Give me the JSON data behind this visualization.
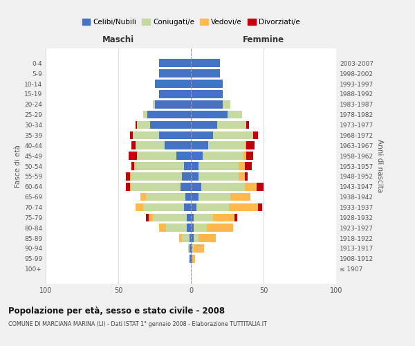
{
  "age_groups": [
    "100+",
    "95-99",
    "90-94",
    "85-89",
    "80-84",
    "75-79",
    "70-74",
    "65-69",
    "60-64",
    "55-59",
    "50-54",
    "45-49",
    "40-44",
    "35-39",
    "30-34",
    "25-29",
    "20-24",
    "15-19",
    "10-14",
    "5-9",
    "0-4"
  ],
  "birth_years": [
    "≤ 1907",
    "1908-1912",
    "1913-1917",
    "1918-1922",
    "1923-1927",
    "1928-1932",
    "1933-1937",
    "1938-1942",
    "1943-1947",
    "1948-1952",
    "1953-1957",
    "1958-1962",
    "1963-1967",
    "1968-1972",
    "1973-1977",
    "1978-1982",
    "1983-1987",
    "1988-1992",
    "1993-1997",
    "1998-2002",
    "2003-2007"
  ],
  "males": {
    "celibe": [
      0,
      1,
      1,
      1,
      3,
      3,
      5,
      4,
      7,
      6,
      5,
      10,
      18,
      22,
      28,
      30,
      25,
      22,
      25,
      22,
      22
    ],
    "coniugato": [
      0,
      0,
      1,
      5,
      14,
      23,
      28,
      27,
      34,
      35,
      33,
      27,
      20,
      18,
      9,
      3,
      1,
      0,
      0,
      0,
      0
    ],
    "vedovo": [
      0,
      0,
      0,
      2,
      5,
      3,
      5,
      4,
      1,
      1,
      1,
      0,
      0,
      0,
      0,
      0,
      0,
      0,
      0,
      0,
      0
    ],
    "divorziato": [
      0,
      0,
      0,
      0,
      0,
      2,
      0,
      0,
      3,
      3,
      2,
      6,
      3,
      2,
      1,
      0,
      0,
      0,
      0,
      0,
      0
    ]
  },
  "females": {
    "nubile": [
      0,
      1,
      1,
      2,
      2,
      2,
      4,
      5,
      7,
      5,
      5,
      8,
      12,
      15,
      18,
      25,
      22,
      22,
      22,
      20,
      20
    ],
    "coniugata": [
      0,
      0,
      1,
      3,
      9,
      13,
      22,
      22,
      30,
      28,
      28,
      28,
      25,
      28,
      20,
      10,
      5,
      0,
      0,
      0,
      0
    ],
    "vedova": [
      0,
      2,
      7,
      12,
      18,
      15,
      20,
      14,
      8,
      4,
      4,
      2,
      1,
      0,
      0,
      0,
      0,
      0,
      0,
      0,
      0
    ],
    "divorziata": [
      0,
      0,
      0,
      0,
      0,
      2,
      3,
      0,
      5,
      2,
      5,
      5,
      6,
      3,
      2,
      0,
      0,
      0,
      0,
      0,
      0
    ]
  },
  "colors": {
    "celibe": "#4472C4",
    "coniugato": "#C5D9A0",
    "vedovo": "#FFB84D",
    "divorziato": "#C0000C"
  },
  "title": "Popolazione per età, sesso e stato civile - 2008",
  "subtitle": "COMUNE DI MARCIANA MARINA (LI) - Dati ISTAT 1° gennaio 2008 - Elaborazione TUTTITALIA.IT",
  "xlabel_left": "Maschi",
  "xlabel_right": "Femmine",
  "ylabel_left": "Fasce di età",
  "ylabel_right": "Anni di nascita",
  "xlim": 100,
  "bg_color": "#f0f0f0",
  "plot_bg": "#ffffff",
  "legend_labels": [
    "Celibi/Nubili",
    "Coniugati/e",
    "Vedovi/e",
    "Divorziati/e"
  ]
}
